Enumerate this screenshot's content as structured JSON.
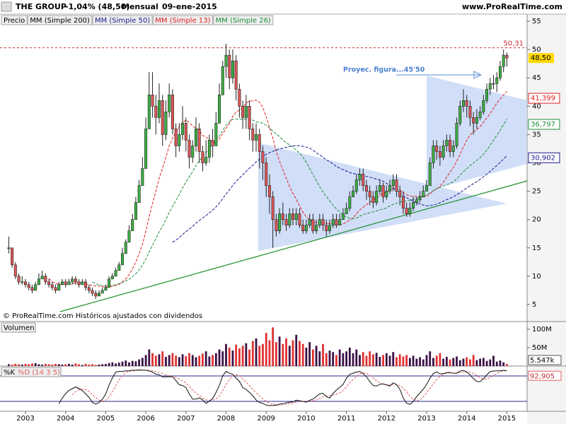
{
  "chart_data": {
    "type": "candlestick",
    "title": "THE GROUP",
    "change": "-1,04% (48,50)",
    "period": "Mensual",
    "date": "09-ene-2015",
    "site": "www.ProRealTime.com",
    "footer": "© ProRealTime.com Históricos ajustados con dividendos",
    "price_label": "Precio",
    "annotation": "Proyec. figura...45'50",
    "close": [
      15,
      12,
      10,
      9,
      9,
      8.5,
      8,
      7.5,
      8.5,
      9.5,
      10,
      9,
      8.5,
      8,
      7.5,
      8.5,
      9,
      8.5,
      9,
      9.5,
      9,
      8.5,
      9,
      8,
      7.5,
      7,
      6.5,
      7,
      7.5,
      8,
      9.5,
      10,
      11,
      12,
      14,
      16,
      18,
      20,
      23,
      26,
      29,
      36,
      42,
      40,
      38,
      41,
      35,
      39,
      42,
      36,
      33,
      35,
      37,
      34,
      31,
      33,
      36,
      32,
      30,
      31,
      34,
      33,
      37,
      42,
      47,
      49,
      45,
      48,
      43,
      40,
      38,
      40,
      36,
      34,
      35,
      32,
      30,
      26,
      24,
      20,
      18,
      21,
      20,
      19,
      21,
      20,
      21,
      19,
      18,
      19,
      20,
      18,
      19,
      20,
      19,
      18,
      19,
      20,
      19,
      20,
      21,
      22,
      24,
      25,
      27,
      28,
      26,
      25,
      24,
      23,
      25,
      26,
      24,
      25,
      26,
      27,
      25,
      24,
      22,
      21,
      22,
      23,
      23.5,
      24,
      25,
      26,
      30,
      33,
      32,
      31,
      33,
      34,
      32,
      33,
      37,
      40,
      41,
      40,
      38,
      37,
      38,
      39,
      41,
      43,
      44,
      44,
      45,
      47,
      49,
      48.5
    ],
    "high": [
      17,
      15,
      12.5,
      10.5,
      10,
      9.5,
      9,
      8.5,
      9,
      10.5,
      11,
      10.5,
      9.5,
      9,
      8.5,
      9,
      9.5,
      9.5,
      9.5,
      10,
      10,
      9.5,
      9.5,
      9.5,
      8.5,
      8,
      7.5,
      7.5,
      8,
      8.5,
      10,
      10.5,
      11.5,
      12.5,
      15,
      16.5,
      19,
      21,
      24,
      27,
      31,
      38,
      46,
      46,
      42,
      44,
      42,
      41,
      44,
      43,
      37,
      37,
      40,
      38,
      35,
      34,
      38,
      37,
      33,
      34,
      35,
      36,
      39,
      44,
      48,
      51,
      50,
      50,
      49,
      44,
      41,
      42,
      41,
      37,
      37,
      36,
      33,
      31,
      28,
      25,
      21,
      22,
      23,
      21,
      22,
      22,
      22,
      22,
      20,
      20,
      21,
      21,
      20,
      21,
      21,
      20,
      20,
      21,
      21,
      21,
      22,
      23,
      25,
      26,
      28,
      29,
      29,
      27,
      26,
      25,
      26,
      27,
      26.5,
      26,
      27,
      28,
      28,
      26,
      25,
      23,
      23,
      24,
      24,
      25,
      26,
      27,
      31,
      34,
      34,
      33,
      34,
      35,
      35,
      34,
      38,
      41,
      43,
      42,
      41,
      39,
      39.5,
      40,
      42,
      44,
      45,
      45.5,
      46,
      48,
      50,
      49.5
    ],
    "low": [
      14,
      11.5,
      9.5,
      8.5,
      8.5,
      8,
      7.5,
      7,
      7.5,
      8.5,
      9.5,
      8.5,
      8,
      7.5,
      7,
      7.5,
      8.5,
      8,
      8.5,
      8.5,
      8.5,
      8,
      8.5,
      7.5,
      7,
      6.5,
      6,
      6.5,
      7,
      7.5,
      8,
      9.5,
      10,
      11,
      12,
      14,
      16,
      18,
      20,
      23,
      26,
      29,
      36,
      38,
      35,
      37,
      33,
      34,
      38,
      35,
      31,
      32,
      34,
      32,
      29,
      30,
      32,
      30,
      28.5,
      29.5,
      30,
      31,
      33,
      37,
      42,
      45,
      43,
      44,
      41,
      38,
      36,
      36,
      34,
      32,
      32,
      29,
      27,
      24,
      21,
      15,
      17,
      17.5,
      19,
      18,
      18.5,
      19,
      19,
      18.5,
      17.5,
      17.5,
      18.5,
      17.5,
      17.5,
      18.5,
      18,
      17,
      17.5,
      18.5,
      18.5,
      19,
      20,
      21,
      21.5,
      24,
      24.5,
      26,
      25,
      23.5,
      22.5,
      22,
      22.5,
      24.5,
      23,
      23.5,
      24.5,
      25,
      24,
      22.5,
      21,
      20.5,
      20.5,
      21.5,
      22.5,
      23,
      24,
      25,
      26,
      29,
      30.5,
      29.5,
      30.5,
      32,
      31,
      31,
      32.5,
      36.5,
      39,
      38,
      36.5,
      35,
      36,
      37.5,
      38.5,
      40.5,
      42,
      43,
      42.5,
      44.5,
      46,
      47
    ],
    "up_color": "#3cb043",
    "down_color": "#e05555",
    "xlim": [
      -2.62,
      155.05
    ],
    "xticks": [
      {
        "value": 5,
        "label": "2003"
      },
      {
        "value": 17,
        "label": "2004"
      },
      {
        "value": 29,
        "label": "2005"
      },
      {
        "value": 41,
        "label": "2006"
      },
      {
        "value": 53,
        "label": "2007"
      },
      {
        "value": 65,
        "label": "2008"
      },
      {
        "value": 77,
        "label": "2009"
      },
      {
        "value": 89,
        "label": "2010"
      },
      {
        "value": 101,
        "label": "2011"
      },
      {
        "value": 113,
        "label": "2012"
      },
      {
        "value": 125,
        "label": "2013"
      },
      {
        "value": 137,
        "label": "2014"
      },
      {
        "value": 149,
        "label": "2015"
      }
    ],
    "ylim": [
      2,
      56.25
    ],
    "yticks": [
      5,
      10,
      15,
      20,
      25,
      30,
      35,
      40,
      45,
      50,
      55
    ],
    "grid": false,
    "high_line": {
      "value": 50.31,
      "label": "50,31"
    },
    "last": {
      "value": 48.5,
      "label": "48,50"
    },
    "moving_averages": [
      {
        "name": "MM (Simple 200)",
        "period": 200,
        "color": "#000000"
      },
      {
        "name": "MM (Simple 50)",
        "period": 50,
        "color": "#1a1a90",
        "last": {
          "value": 30.902,
          "label": "30,902"
        }
      },
      {
        "name": "MM (Simple 13)",
        "period": 13,
        "color": "#e02020",
        "last": {
          "value": 41.399,
          "label": "41,399"
        }
      },
      {
        "name": "MM (Simple 26)",
        "period": 26,
        "color": "#1f8f3a",
        "last": {
          "value": 36.797,
          "label": "36,797"
        }
      }
    ],
    "volume": {
      "title": "Volumen",
      "values": [
        5,
        4,
        6,
        5,
        4,
        6,
        5,
        7,
        8,
        5,
        4,
        6,
        5,
        4,
        6,
        5,
        4,
        5,
        6,
        4,
        7,
        5,
        3,
        6,
        4,
        5,
        3,
        4,
        5,
        6,
        8,
        10,
        7,
        9,
        12,
        15,
        10,
        14,
        13,
        18,
        22,
        30,
        45,
        35,
        28,
        32,
        40,
        25,
        30,
        35,
        28,
        24,
        32,
        27,
        35,
        30,
        24,
        28,
        34,
        40,
        26,
        30,
        35,
        45,
        40,
        60,
        50,
        42,
        58,
        48,
        55,
        62,
        45,
        68,
        75,
        55,
        60,
        90,
        70,
        105,
        65,
        80,
        60,
        75,
        55,
        70,
        85,
        68,
        60,
        50,
        65,
        45,
        55,
        40,
        60,
        35,
        42,
        38,
        30,
        45,
        35,
        40,
        50,
        35,
        45,
        30,
        38,
        28,
        40,
        32,
        36,
        25,
        30,
        35,
        28,
        38,
        24,
        32,
        26,
        30,
        22,
        28,
        20,
        24,
        18,
        30,
        40,
        22,
        28,
        35,
        20,
        25,
        18,
        22,
        26,
        16,
        20,
        24,
        18,
        30,
        16,
        20,
        22,
        14,
        18,
        28,
        12,
        15,
        10,
        5.5
      ],
      "up_color": "#3a1045",
      "down_color": "#e03030",
      "ylim": [
        0,
        119
      ],
      "yticks": [
        {
          "value": 100,
          "label": "100M"
        },
        {
          "value": 50,
          "label": "50M"
        }
      ],
      "last_label": "5.547k"
    },
    "stochastic": {
      "k_label": "%K",
      "d_label": "%D (14 3 5)",
      "params": [
        14,
        3,
        5
      ],
      "ylim": [
        0,
        100
      ],
      "levels": [
        80,
        20
      ],
      "last": {
        "value": 92.905,
        "label": "92,905"
      }
    }
  }
}
